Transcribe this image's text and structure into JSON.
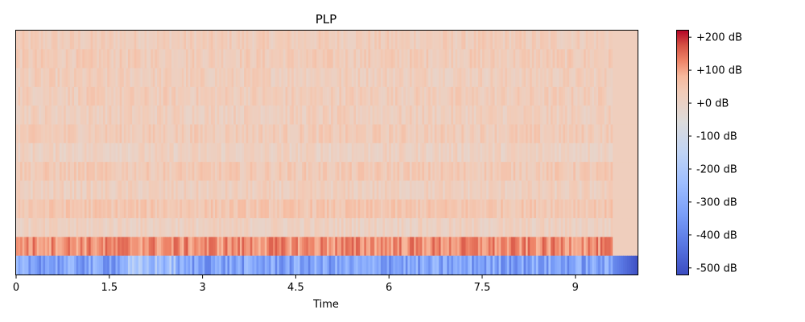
{
  "chart_data": {
    "type": "heatmap",
    "title": "PLP",
    "xlabel": "Time",
    "ylabel": "",
    "xlim": [
      0,
      10
    ],
    "x_ticks": [
      {
        "value": 0,
        "label": "0"
      },
      {
        "value": 1.5,
        "label": "1.5"
      },
      {
        "value": 3,
        "label": "3"
      },
      {
        "value": 4.5,
        "label": "4.5"
      },
      {
        "value": 6,
        "label": "6"
      },
      {
        "value": 7.5,
        "label": "7.5"
      },
      {
        "value": 9,
        "label": "9"
      }
    ],
    "num_coefficients": 13,
    "colormap": "coolwarm",
    "colorbar": {
      "range": [
        -520,
        220
      ],
      "ticks": [
        {
          "value": 200,
          "label": "+200 dB"
        },
        {
          "value": 100,
          "label": "+100 dB"
        },
        {
          "value": 0,
          "label": "+0 dB"
        },
        {
          "value": -100,
          "label": "-100 dB"
        },
        {
          "value": -200,
          "label": "-200 dB"
        },
        {
          "value": -300,
          "label": "-300 dB"
        },
        {
          "value": -400,
          "label": "-400 dB"
        },
        {
          "value": -500,
          "label": "-500 dB"
        }
      ]
    },
    "row_mean_values_top_to_bottom": [
      25,
      30,
      22,
      26,
      20,
      30,
      10,
      35,
      15,
      45,
      10,
      120,
      -320
    ],
    "signal_end_time": 9.6,
    "pad_value": 20
  }
}
